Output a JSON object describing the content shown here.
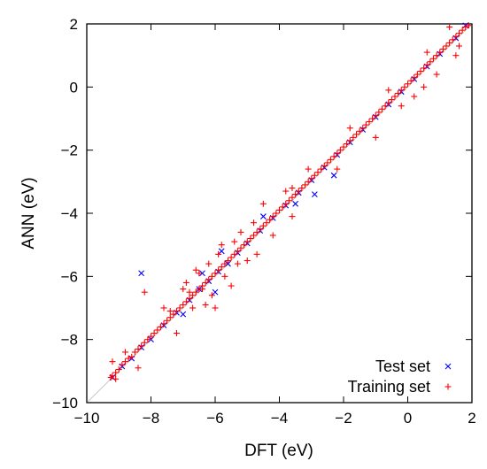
{
  "chart_data": {
    "type": "scatter",
    "xlabel": "DFT (eV)",
    "ylabel": "ANN (eV)",
    "xlim": [
      -10,
      2
    ],
    "ylim": [
      -10,
      2
    ],
    "xticks": [
      "−10",
      "−8",
      "−6",
      "−4",
      "−2",
      "0",
      "2"
    ],
    "yticks": [
      "−10",
      "−8",
      "−6",
      "−4",
      "−2",
      "0",
      "2"
    ],
    "xtick_values": [
      -10,
      -8,
      -6,
      -4,
      -2,
      0,
      2
    ],
    "ytick_values": [
      -10,
      -8,
      -6,
      -4,
      -2,
      0,
      2
    ],
    "grid": false,
    "diagonal_reference_line": true,
    "legend_position": "bottom-right",
    "series": [
      {
        "name": "Training set",
        "marker": "plus",
        "color": "#ff0000",
        "points": [
          [
            -9.25,
            -9.2
          ],
          [
            -9.2,
            -9.15
          ],
          [
            -9.1,
            -9.05
          ],
          [
            -9.0,
            -8.95
          ],
          [
            -8.9,
            -8.8
          ],
          [
            -8.8,
            -8.7
          ],
          [
            -8.7,
            -8.6
          ],
          [
            -8.6,
            -8.55
          ],
          [
            -8.5,
            -8.4
          ],
          [
            -8.4,
            -8.3
          ],
          [
            -8.3,
            -8.2
          ],
          [
            -8.2,
            -8.1
          ],
          [
            -8.1,
            -8.0
          ],
          [
            -8.0,
            -7.9
          ],
          [
            -7.9,
            -7.8
          ],
          [
            -7.8,
            -7.7
          ],
          [
            -7.7,
            -7.6
          ],
          [
            -7.6,
            -7.5
          ],
          [
            -7.5,
            -7.4
          ],
          [
            -7.4,
            -7.3
          ],
          [
            -7.3,
            -7.2
          ],
          [
            -7.2,
            -7.1
          ],
          [
            -7.1,
            -7.0
          ],
          [
            -7.0,
            -6.9
          ],
          [
            -6.9,
            -6.8
          ],
          [
            -6.8,
            -6.7
          ],
          [
            -6.7,
            -6.6
          ],
          [
            -6.6,
            -6.5
          ],
          [
            -6.5,
            -6.4
          ],
          [
            -6.4,
            -6.3
          ],
          [
            -6.3,
            -6.2
          ],
          [
            -6.2,
            -6.1
          ],
          [
            -6.1,
            -6.0
          ],
          [
            -6.0,
            -5.9
          ],
          [
            -5.9,
            -5.8
          ],
          [
            -5.8,
            -5.7
          ],
          [
            -5.7,
            -5.6
          ],
          [
            -5.6,
            -5.5
          ],
          [
            -5.5,
            -5.4
          ],
          [
            -5.4,
            -5.3
          ],
          [
            -5.3,
            -5.2
          ],
          [
            -5.2,
            -5.1
          ],
          [
            -5.1,
            -5.0
          ],
          [
            -5.0,
            -4.9
          ],
          [
            -4.9,
            -4.8
          ],
          [
            -4.8,
            -4.7
          ],
          [
            -4.7,
            -4.6
          ],
          [
            -4.6,
            -4.5
          ],
          [
            -4.5,
            -4.4
          ],
          [
            -4.4,
            -4.3
          ],
          [
            -4.3,
            -4.2
          ],
          [
            -4.2,
            -4.1
          ],
          [
            -4.1,
            -4.0
          ],
          [
            -4.0,
            -3.9
          ],
          [
            -3.9,
            -3.8
          ],
          [
            -3.8,
            -3.7
          ],
          [
            -3.7,
            -3.6
          ],
          [
            -3.6,
            -3.5
          ],
          [
            -3.5,
            -3.4
          ],
          [
            -3.4,
            -3.3
          ],
          [
            -3.3,
            -3.2
          ],
          [
            -3.2,
            -3.1
          ],
          [
            -3.1,
            -3.0
          ],
          [
            -3.0,
            -2.9
          ],
          [
            -2.9,
            -2.8
          ],
          [
            -2.8,
            -2.7
          ],
          [
            -2.7,
            -2.6
          ],
          [
            -2.6,
            -2.5
          ],
          [
            -2.5,
            -2.4
          ],
          [
            -2.4,
            -2.3
          ],
          [
            -2.3,
            -2.2
          ],
          [
            -2.2,
            -2.1
          ],
          [
            -2.1,
            -2.0
          ],
          [
            -2.0,
            -1.9
          ],
          [
            -1.9,
            -1.8
          ],
          [
            -1.8,
            -1.7
          ],
          [
            -1.7,
            -1.6
          ],
          [
            -1.6,
            -1.5
          ],
          [
            -1.5,
            -1.4
          ],
          [
            -1.4,
            -1.3
          ],
          [
            -1.3,
            -1.2
          ],
          [
            -1.2,
            -1.1
          ],
          [
            -1.1,
            -1.0
          ],
          [
            -1.0,
            -0.9
          ],
          [
            -0.9,
            -0.8
          ],
          [
            -0.8,
            -0.7
          ],
          [
            -0.7,
            -0.6
          ],
          [
            -0.6,
            -0.5
          ],
          [
            -0.5,
            -0.4
          ],
          [
            -0.4,
            -0.3
          ],
          [
            -0.3,
            -0.2
          ],
          [
            -0.2,
            -0.1
          ],
          [
            -0.1,
            0.0
          ],
          [
            0.0,
            0.1
          ],
          [
            0.1,
            0.2
          ],
          [
            0.2,
            0.3
          ],
          [
            0.3,
            0.4
          ],
          [
            0.4,
            0.5
          ],
          [
            0.5,
            0.6
          ],
          [
            0.6,
            0.7
          ],
          [
            0.7,
            0.8
          ],
          [
            0.8,
            0.9
          ],
          [
            0.9,
            1.0
          ],
          [
            1.0,
            1.1
          ],
          [
            1.1,
            1.2
          ],
          [
            1.2,
            1.3
          ],
          [
            1.3,
            1.4
          ],
          [
            1.4,
            1.5
          ],
          [
            1.5,
            1.6
          ],
          [
            1.6,
            1.7
          ],
          [
            1.7,
            1.8
          ],
          [
            1.8,
            1.9
          ],
          [
            1.9,
            1.95
          ],
          [
            1.3,
            1.9
          ],
          [
            1.5,
            1.0
          ],
          [
            1.6,
            1.3
          ],
          [
            0.5,
            0.0
          ],
          [
            0.2,
            -0.3
          ],
          [
            -0.6,
            -0.1
          ],
          [
            -1.0,
            -1.6
          ],
          [
            -3.1,
            -2.6
          ],
          [
            -3.8,
            -3.3
          ],
          [
            -4.5,
            -3.7
          ],
          [
            -3.6,
            -4.1
          ],
          [
            -5.2,
            -4.6
          ],
          [
            -4.7,
            -5.3
          ],
          [
            -5.8,
            -5.0
          ],
          [
            -6.6,
            -5.8
          ],
          [
            -6.3,
            -6.9
          ],
          [
            -6.0,
            -7.0
          ],
          [
            -5.5,
            -6.3
          ],
          [
            -6.9,
            -6.2
          ],
          [
            -7.6,
            -7.0
          ],
          [
            -7.2,
            -7.8
          ],
          [
            -8.2,
            -6.5
          ],
          [
            -8.8,
            -8.4
          ],
          [
            -8.4,
            -8.9
          ],
          [
            -9.2,
            -8.7
          ],
          [
            -9.1,
            -9.25
          ],
          [
            -4.8,
            -4.3
          ],
          [
            -4.2,
            -4.7
          ],
          [
            -3.6,
            -3.2
          ],
          [
            -2.2,
            -2.6
          ],
          [
            -1.8,
            -1.3
          ],
          [
            -0.2,
            -0.6
          ],
          [
            0.9,
            0.4
          ],
          [
            0.6,
            1.1
          ],
          [
            -6.4,
            -6.4
          ],
          [
            -6.2,
            -5.6
          ],
          [
            -5.7,
            -6.0
          ],
          [
            -6.1,
            -6.6
          ],
          [
            -5.9,
            -5.3
          ],
          [
            -6.5,
            -5.9
          ],
          [
            -6.8,
            -6.5
          ],
          [
            -5.3,
            -5.6
          ],
          [
            -5.0,
            -5.5
          ],
          [
            -5.4,
            -4.9
          ],
          [
            -6.7,
            -7.0
          ],
          [
            -7.0,
            -6.4
          ],
          [
            -7.4,
            -7.1
          ]
        ]
      },
      {
        "name": "Test set",
        "marker": "x",
        "color": "#0000ff",
        "points": [
          [
            -9.2,
            -9.2
          ],
          [
            -8.9,
            -8.85
          ],
          [
            -8.6,
            -8.6
          ],
          [
            -8.3,
            -8.25
          ],
          [
            -8.0,
            -8.0
          ],
          [
            -7.6,
            -7.55
          ],
          [
            -7.2,
            -7.15
          ],
          [
            -6.8,
            -6.75
          ],
          [
            -6.5,
            -6.4
          ],
          [
            -6.2,
            -6.15
          ],
          [
            -5.9,
            -5.85
          ],
          [
            -5.6,
            -5.6
          ],
          [
            -5.3,
            -5.25
          ],
          [
            -5.0,
            -4.95
          ],
          [
            -4.6,
            -4.55
          ],
          [
            -4.2,
            -4.15
          ],
          [
            -3.8,
            -3.75
          ],
          [
            -3.4,
            -3.35
          ],
          [
            -3.0,
            -2.95
          ],
          [
            -2.6,
            -2.55
          ],
          [
            -2.2,
            -2.15
          ],
          [
            -1.8,
            -1.75
          ],
          [
            -1.4,
            -1.35
          ],
          [
            -1.0,
            -0.95
          ],
          [
            -0.6,
            -0.55
          ],
          [
            -0.2,
            -0.15
          ],
          [
            0.2,
            0.25
          ],
          [
            0.6,
            0.65
          ],
          [
            1.0,
            1.05
          ],
          [
            1.5,
            1.55
          ],
          [
            1.8,
            1.95
          ],
          [
            -8.3,
            -5.9
          ],
          [
            -2.9,
            -3.4
          ],
          [
            -2.3,
            -2.8
          ],
          [
            -3.5,
            -3.7
          ],
          [
            -6.0,
            -6.5
          ],
          [
            -5.8,
            -5.2
          ],
          [
            -6.4,
            -5.9
          ],
          [
            -4.5,
            -4.1
          ],
          [
            -7.0,
            -7.2
          ]
        ]
      }
    ]
  }
}
